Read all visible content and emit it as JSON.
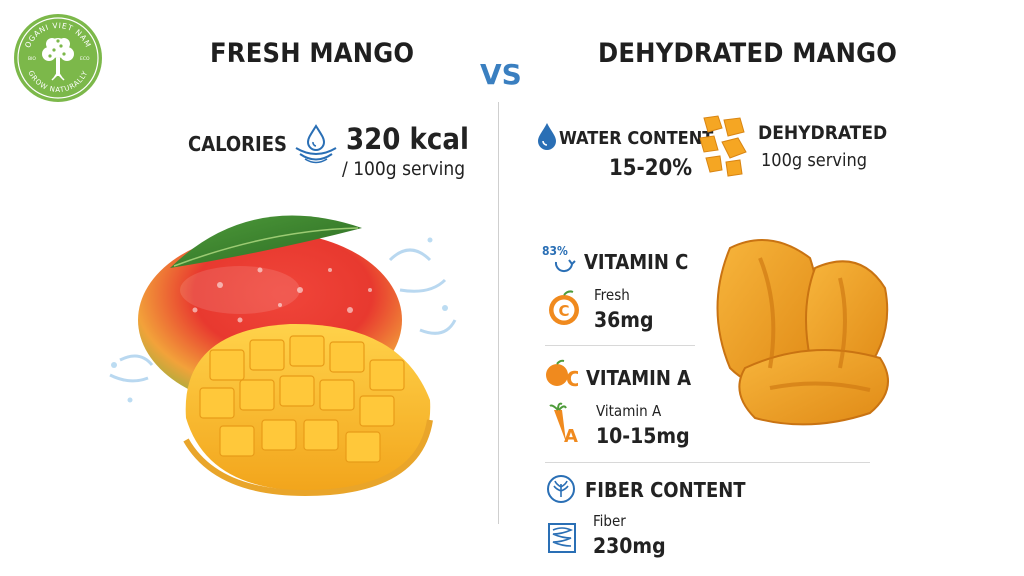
{
  "logo": {
    "ring_top_text": "OGANI VIET NAM",
    "ring_bottom_text": "GROW NATURALLY",
    "left_text": "BIO",
    "right_text": "ECO",
    "color": "#7cb84a"
  },
  "left": {
    "title": "FRESH MANGO",
    "calories_label": "CALORIES",
    "calories_value": "320 kcal",
    "calories_unit": "/ 100g serving"
  },
  "vs_label": "VS",
  "right": {
    "title": "DEHYDRATED MANGO",
    "water_label": "WATER CONTENT",
    "water_value": "15-20%",
    "dehydrated_label": "DEHYDRATED",
    "dehydrated_unit": "100g serving",
    "vitamin_c": {
      "percent": "83%",
      "label": "VITAMIN C",
      "sub": "Fresh",
      "value": "36mg"
    },
    "vitamin_a": {
      "label": "VITAMIN A",
      "sub": "Vitamin A",
      "value": "10-15mg"
    },
    "fiber": {
      "label": "FIBER CONTENT",
      "sub": "Fiber",
      "value": "230mg"
    }
  },
  "icons": {
    "water_ripple": "water-drop-ripple-icon",
    "water_drop": "water-drop-icon",
    "dried_chunks": "dried-mango-chunks-icon",
    "vitamin_c": "vitamin-c-orange-icon",
    "vitamin_a": "orange-c-icon",
    "carrot": "carrot-icon",
    "fiber": "leaf-circle-icon",
    "intestine": "intestine-icon"
  },
  "colors": {
    "vs": "#3a7fc0",
    "orange": "#f08a1e",
    "blue": "#2a6fb5"
  }
}
